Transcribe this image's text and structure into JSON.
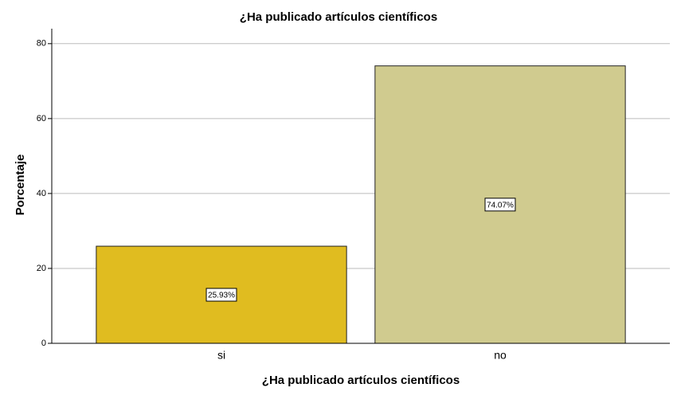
{
  "chart_data": {
    "type": "bar",
    "title": "¿Ha publicado artículos científicos",
    "x_label": "¿Ha publicado artículos científicos",
    "y_label": "Porcentaje",
    "categories": [
      "si",
      "no"
    ],
    "values": [
      25.93,
      74.07
    ],
    "value_labels": [
      "25.93%",
      "74.07%"
    ],
    "colors": [
      "#e0bc20",
      "#d0cb8f"
    ],
    "ylim": [
      0,
      84
    ],
    "yticks": [
      0,
      20,
      40,
      60,
      80
    ],
    "grid": true
  }
}
